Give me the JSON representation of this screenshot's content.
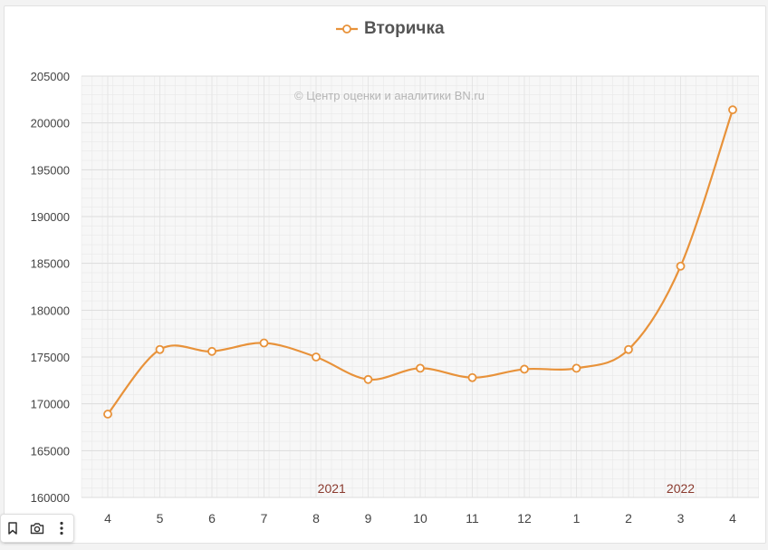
{
  "legend": {
    "label": "Вторичка"
  },
  "watermark": "© Центр оценки и аналитики BN.ru",
  "colors": {
    "line": "#e8923a",
    "marker_fill": "#ffffff",
    "grid": "#e6e6e6",
    "plot_bg": "#f7f7f7",
    "tick_text": "#444444",
    "year_label": "#8a3a2e",
    "watermark": "#b5b5b5"
  },
  "toolbar": {
    "icons": [
      "bookmark-icon",
      "camera-icon",
      "more-vertical-icon"
    ]
  },
  "chart_data": {
    "type": "line",
    "categories": [
      "4",
      "5",
      "6",
      "7",
      "8",
      "9",
      "10",
      "11",
      "12",
      "1",
      "2",
      "3",
      "4"
    ],
    "series": [
      {
        "name": "Вторичка",
        "values": [
          168900,
          175800,
          175600,
          176500,
          175000,
          172600,
          173800,
          172800,
          173700,
          173800,
          175800,
          184700,
          201400
        ]
      }
    ],
    "year_labels": [
      {
        "text": "2021",
        "at_category_index": 4.3
      },
      {
        "text": "2022",
        "at_category_index": 11
      }
    ],
    "yticks": [
      "160000",
      "165000",
      "170000",
      "175000",
      "180000",
      "185000",
      "190000",
      "195000",
      "200000",
      "205000"
    ],
    "ylim": [
      160000,
      205000
    ],
    "grid": true,
    "smooth": true,
    "legend_position": "top-center"
  }
}
